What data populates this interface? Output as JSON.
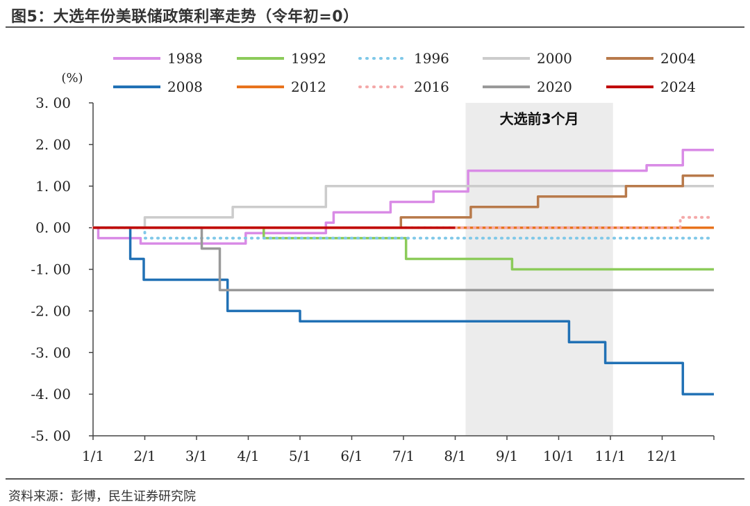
{
  "header": {
    "title": "图5：大选年份美联储政策利率走势（令年初=0）"
  },
  "footer": {
    "source": "资料来源：彭博，民生证券研究院"
  },
  "chart_data": {
    "type": "line",
    "ylabel": "(%)",
    "ylim": [
      -5,
      3
    ],
    "yticks": [
      "3. 00",
      "2. 00",
      "1. 00",
      "0. 00",
      "-1. 00",
      "-2. 00",
      "-3. 00",
      "-4. 00",
      "-5. 00"
    ],
    "ytick_values": [
      3,
      2,
      1,
      0,
      -1,
      -2,
      -3,
      -4,
      -5
    ],
    "xlim": [
      1,
      13
    ],
    "x_unit": "month",
    "xticks": [
      "1/1",
      "2/1",
      "3/1",
      "4/1",
      "5/1",
      "6/1",
      "7/1",
      "8/1",
      "9/1",
      "10/1",
      "11/1",
      "12/1"
    ],
    "shaded_region": {
      "label": "大选前3个月",
      "x_start": 8.2,
      "x_end": 11.05
    },
    "grid": false,
    "legend": "top",
    "series": [
      {
        "name": "1988",
        "color": "#D98BE6",
        "dashed": false,
        "points": [
          [
            1,
            0
          ],
          [
            1.1,
            0
          ],
          [
            1.1,
            -0.25
          ],
          [
            1.92,
            -0.25
          ],
          [
            1.92,
            -0.38
          ],
          [
            3.95,
            -0.38
          ],
          [
            3.95,
            -0.13
          ],
          [
            5.5,
            -0.13
          ],
          [
            5.5,
            0.12
          ],
          [
            5.65,
            0.12
          ],
          [
            5.65,
            0.37
          ],
          [
            6.75,
            0.37
          ],
          [
            6.75,
            0.62
          ],
          [
            7.58,
            0.62
          ],
          [
            7.58,
            0.87
          ],
          [
            8.25,
            0.87
          ],
          [
            8.25,
            1.37
          ],
          [
            11.7,
            1.37
          ],
          [
            11.7,
            1.5
          ],
          [
            12.4,
            1.5
          ],
          [
            12.4,
            1.87
          ],
          [
            13,
            1.87
          ]
        ]
      },
      {
        "name": "1992",
        "color": "#8CCB5A",
        "dashed": false,
        "points": [
          [
            1,
            0
          ],
          [
            4.3,
            0
          ],
          [
            4.3,
            -0.25
          ],
          [
            7.05,
            -0.25
          ],
          [
            7.05,
            -0.75
          ],
          [
            9.1,
            -0.75
          ],
          [
            9.1,
            -1
          ],
          [
            13,
            -1
          ]
        ]
      },
      {
        "name": "1996",
        "color": "#7FC8E8",
        "dashed": true,
        "points": [
          [
            1,
            0
          ],
          [
            2,
            0
          ],
          [
            2,
            -0.25
          ],
          [
            13,
            -0.25
          ]
        ]
      },
      {
        "name": "2000",
        "color": "#CCCCCC",
        "dashed": false,
        "points": [
          [
            1,
            0
          ],
          [
            2,
            0
          ],
          [
            2,
            0.25
          ],
          [
            3.7,
            0.25
          ],
          [
            3.7,
            0.5
          ],
          [
            5.5,
            0.5
          ],
          [
            5.5,
            1
          ],
          [
            13,
            1
          ]
        ]
      },
      {
        "name": "2004",
        "color": "#B87A4B",
        "dashed": false,
        "points": [
          [
            1,
            0
          ],
          [
            6.95,
            0
          ],
          [
            6.95,
            0.25
          ],
          [
            8.3,
            0.25
          ],
          [
            8.3,
            0.5
          ],
          [
            9.6,
            0.5
          ],
          [
            9.6,
            0.75
          ],
          [
            11.3,
            0.75
          ],
          [
            11.3,
            1
          ],
          [
            12.4,
            1
          ],
          [
            12.4,
            1.25
          ],
          [
            13,
            1.25
          ]
        ]
      },
      {
        "name": "2008",
        "color": "#2171B5",
        "dashed": false,
        "points": [
          [
            1,
            0
          ],
          [
            1.72,
            0
          ],
          [
            1.72,
            -0.75
          ],
          [
            1.98,
            -0.75
          ],
          [
            1.98,
            -1.25
          ],
          [
            3.6,
            -1.25
          ],
          [
            3.6,
            -2
          ],
          [
            5,
            -2
          ],
          [
            5,
            -2.25
          ],
          [
            10.2,
            -2.25
          ],
          [
            10.2,
            -2.75
          ],
          [
            10.9,
            -2.75
          ],
          [
            10.9,
            -3.25
          ],
          [
            12.4,
            -3.25
          ],
          [
            12.4,
            -4
          ],
          [
            13,
            -4
          ]
        ]
      },
      {
        "name": "2012",
        "color": "#E8731D",
        "dashed": false,
        "points": [
          [
            1,
            0
          ],
          [
            13,
            0
          ]
        ]
      },
      {
        "name": "2016",
        "color": "#F4A8A8",
        "dashed": true,
        "points": [
          [
            1,
            0
          ],
          [
            12.35,
            0
          ],
          [
            12.35,
            0.25
          ],
          [
            13,
            0.25
          ]
        ]
      },
      {
        "name": "2020",
        "color": "#999999",
        "dashed": false,
        "points": [
          [
            1,
            0
          ],
          [
            3.1,
            0
          ],
          [
            3.1,
            -0.5
          ],
          [
            3.45,
            -0.5
          ],
          [
            3.45,
            -1.5
          ],
          [
            13,
            -1.5
          ]
        ]
      },
      {
        "name": "2024",
        "color": "#C00000",
        "dashed": false,
        "points": [
          [
            1,
            0
          ],
          [
            8,
            0
          ]
        ]
      }
    ]
  }
}
